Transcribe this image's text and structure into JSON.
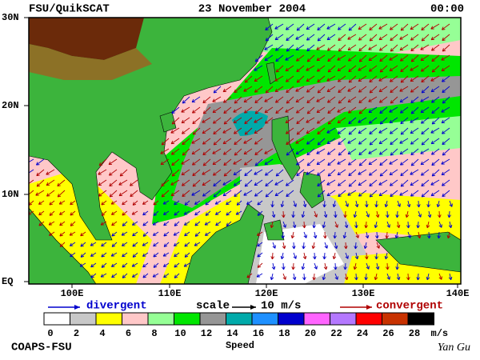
{
  "header": {
    "left": "FSU/QuikSCAT",
    "center": "23 November 2004",
    "right": "00:00"
  },
  "lat_labels": [
    "30N",
    "20N",
    "10N",
    "EQ"
  ],
  "lon_labels": [
    "100E",
    "110E",
    "120E",
    "130E",
    "140E"
  ],
  "legend": {
    "divergent": "divergent",
    "scale": "scale",
    "scale_value": "10 m/s",
    "convergent": "convergent"
  },
  "colorbar": {
    "labels": [
      "0",
      "2",
      "4",
      "6",
      "8",
      "10",
      "12",
      "14",
      "16",
      "18",
      "20",
      "22",
      "24",
      "26",
      "28"
    ],
    "colors": [
      "#ffffff",
      "#c8c8c8",
      "#ffff00",
      "#ffc8c8",
      "#96ff96",
      "#00e600",
      "#969696",
      "#00aaaa",
      "#1e90ff",
      "#0000cd",
      "#ff64ff",
      "#b478ff",
      "#ff0000",
      "#c83200",
      "#000000"
    ],
    "unit": "m/s",
    "title": "Speed"
  },
  "footer": {
    "left": "COAPS-FSU",
    "right": "Yan Gu"
  }
}
